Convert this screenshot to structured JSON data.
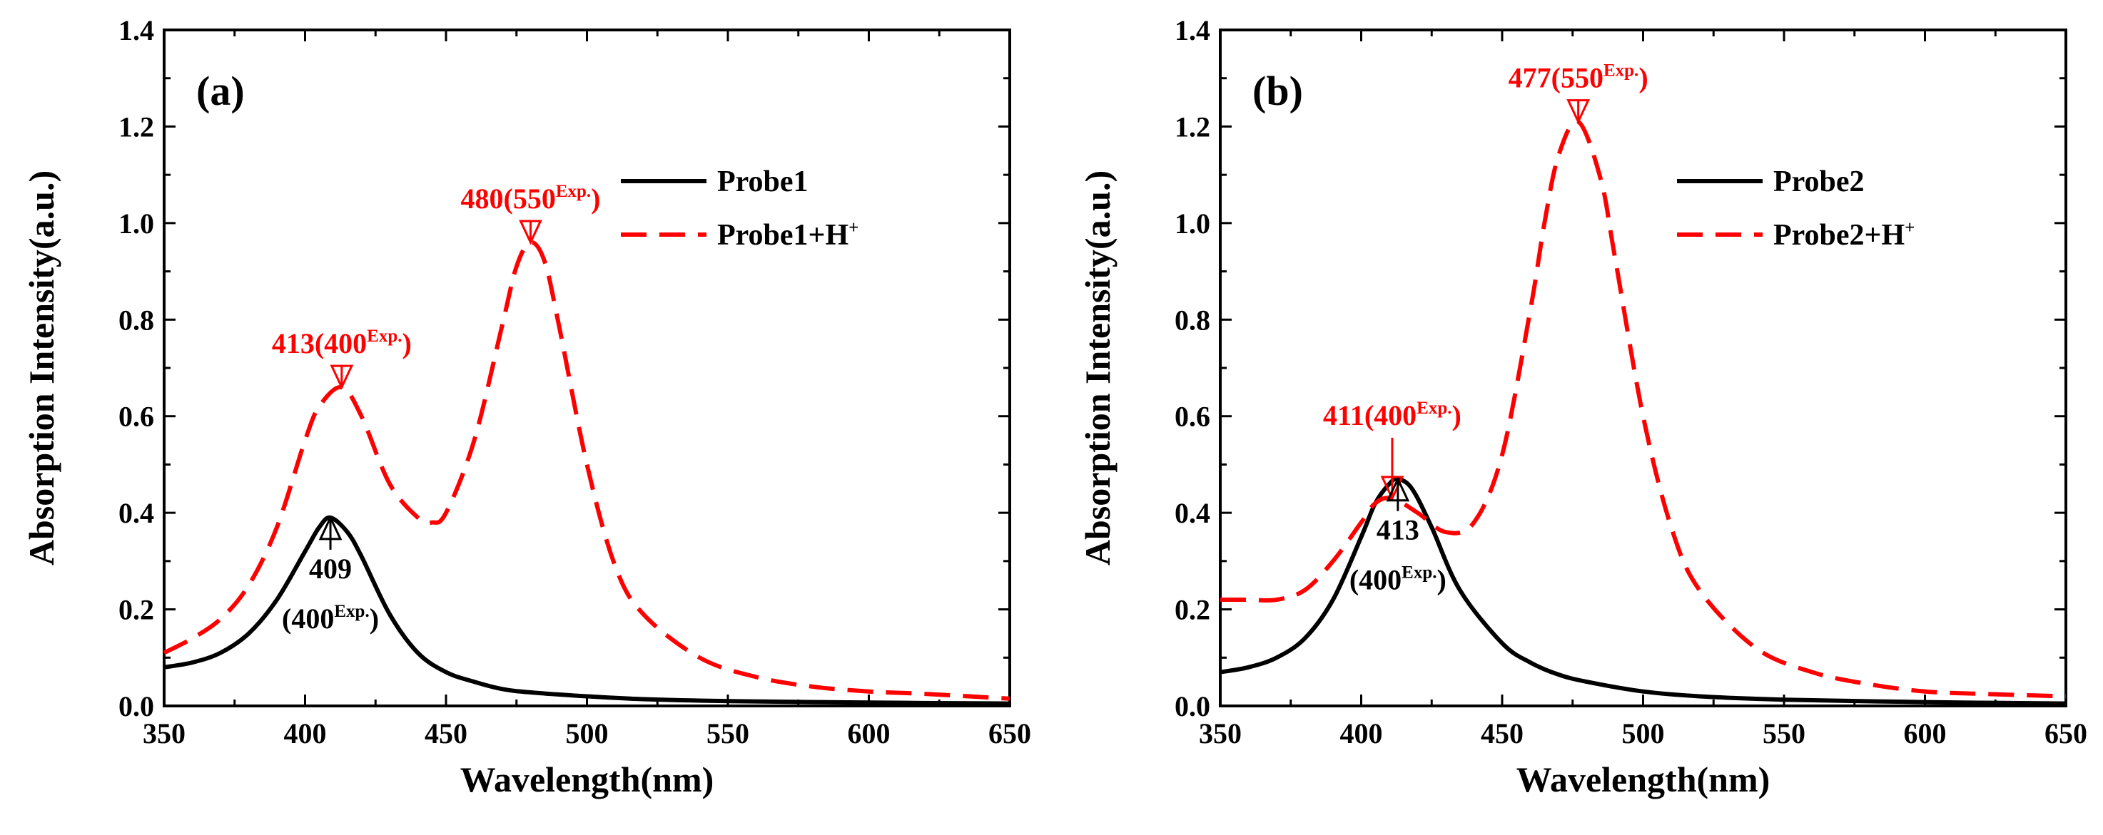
{
  "chart_data": [
    {
      "type": "line",
      "panel_label": "(a)",
      "xlabel": "Wavelength(nm)",
      "ylabel": "Absorption Intensity(a.u.)",
      "xlim": [
        350,
        650
      ],
      "ylim": [
        0.0,
        1.4
      ],
      "xticks": [
        "350",
        "400",
        "450",
        "500",
        "550",
        "600",
        "650"
      ],
      "yticks": [
        "0.0",
        "0.2",
        "0.4",
        "0.6",
        "0.8",
        "1.0",
        "1.2",
        "1.4"
      ],
      "legend_position": "upper-right",
      "series": [
        {
          "name": "Probe1",
          "color": "#000000",
          "dash": "solid",
          "x": [
            350,
            360,
            370,
            380,
            390,
            400,
            405,
            409,
            415,
            420,
            430,
            440,
            450,
            460,
            470,
            480,
            500,
            520,
            550,
            600,
            650
          ],
          "y": [
            0.08,
            0.09,
            0.11,
            0.15,
            0.22,
            0.32,
            0.37,
            0.39,
            0.36,
            0.31,
            0.19,
            0.11,
            0.07,
            0.05,
            0.035,
            0.028,
            0.02,
            0.014,
            0.01,
            0.007,
            0.005
          ]
        },
        {
          "name": "Probe1+H",
          "name_sup": "+",
          "color": "#ff0000",
          "dash": "dashed",
          "x": [
            350,
            360,
            370,
            380,
            390,
            400,
            405,
            413,
            420,
            430,
            440,
            445,
            450,
            460,
            470,
            475,
            480,
            485,
            490,
            500,
            510,
            520,
            540,
            560,
            580,
            600,
            620,
            650
          ],
          "y": [
            0.11,
            0.14,
            0.18,
            0.25,
            0.37,
            0.55,
            0.62,
            0.66,
            0.6,
            0.46,
            0.39,
            0.38,
            0.4,
            0.55,
            0.79,
            0.91,
            0.96,
            0.92,
            0.79,
            0.5,
            0.29,
            0.19,
            0.1,
            0.06,
            0.04,
            0.03,
            0.025,
            0.015
          ]
        }
      ],
      "annotations": [
        {
          "text": "413(400",
          "sup": "Exp.",
          "close": ")",
          "x": 413,
          "y": 0.66,
          "color": "#ff0000",
          "direction": "down"
        },
        {
          "text": "480(550",
          "sup": "Exp.",
          "close": ")",
          "x": 480,
          "y": 0.96,
          "color": "#ff0000",
          "direction": "down"
        },
        {
          "text": "409",
          "line2": "(400",
          "sup": "Exp.",
          "close": ")",
          "x": 409,
          "y": 0.39,
          "color": "#000000",
          "direction": "up"
        }
      ]
    },
    {
      "type": "line",
      "panel_label": "(b)",
      "xlabel": "Wavelength(nm)",
      "ylabel": "Absorption Intensity(a.u.)",
      "xlim": [
        350,
        650
      ],
      "ylim": [
        0.0,
        1.4
      ],
      "xticks": [
        "350",
        "400",
        "450",
        "500",
        "550",
        "600",
        "650"
      ],
      "yticks": [
        "0.0",
        "0.2",
        "0.4",
        "0.6",
        "0.8",
        "1.0",
        "1.2",
        "1.4"
      ],
      "legend_position": "upper-right",
      "series": [
        {
          "name": "Probe2",
          "color": "#000000",
          "dash": "solid",
          "x": [
            350,
            360,
            370,
            380,
            390,
            400,
            405,
            410,
            413,
            418,
            425,
            435,
            450,
            460,
            470,
            480,
            500,
            520,
            550,
            600,
            650
          ],
          "y": [
            0.07,
            0.08,
            0.1,
            0.14,
            0.22,
            0.35,
            0.42,
            0.46,
            0.47,
            0.45,
            0.37,
            0.24,
            0.13,
            0.09,
            0.065,
            0.05,
            0.03,
            0.02,
            0.013,
            0.008,
            0.005
          ]
        },
        {
          "name": "Probe2+H",
          "name_sup": "+",
          "color": "#ff0000",
          "dash": "dashed",
          "x": [
            350,
            360,
            370,
            380,
            390,
            400,
            405,
            411,
            420,
            430,
            440,
            450,
            460,
            465,
            470,
            477,
            485,
            490,
            500,
            510,
            520,
            540,
            560,
            580,
            600,
            620,
            650
          ],
          "y": [
            0.22,
            0.22,
            0.22,
            0.24,
            0.3,
            0.38,
            0.42,
            0.43,
            0.4,
            0.36,
            0.38,
            0.52,
            0.82,
            1.0,
            1.14,
            1.21,
            1.09,
            0.93,
            0.6,
            0.37,
            0.24,
            0.12,
            0.07,
            0.045,
            0.03,
            0.025,
            0.02
          ]
        }
      ],
      "annotations": [
        {
          "text": "477(550",
          "sup": "Exp.",
          "close": ")",
          "x": 477,
          "y": 1.21,
          "color": "#ff0000",
          "direction": "down"
        },
        {
          "text": "411(400",
          "sup": "Exp.",
          "close": ")",
          "x": 411,
          "y": 0.43,
          "color": "#ff0000",
          "direction": "down"
        },
        {
          "text": "413",
          "line2": "(400",
          "sup": "Exp.",
          "close": ")",
          "x": 413,
          "y": 0.47,
          "color": "#000000",
          "direction": "up"
        }
      ]
    }
  ]
}
